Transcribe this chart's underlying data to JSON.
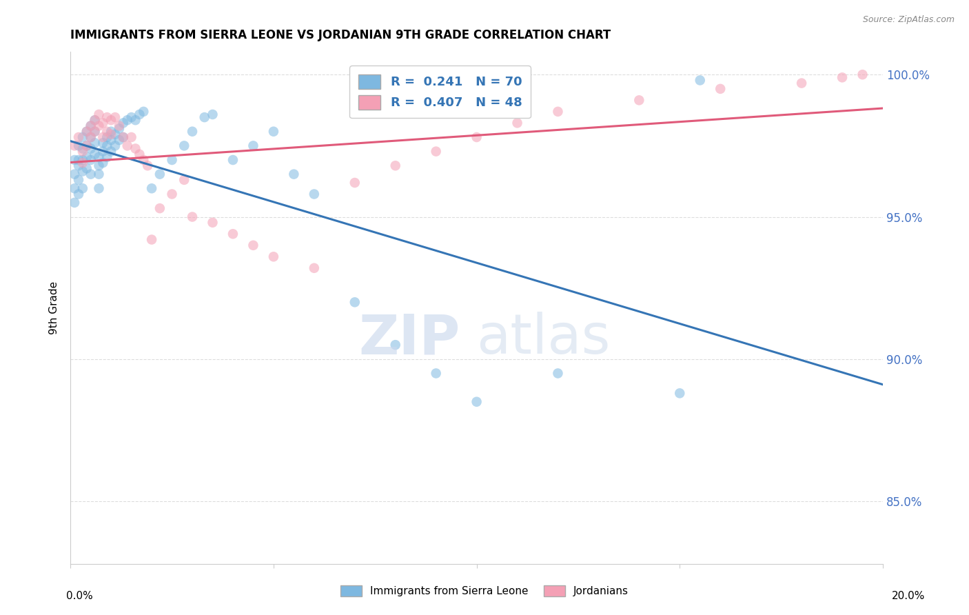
{
  "title": "IMMIGRANTS FROM SIERRA LEONE VS JORDANIAN 9TH GRADE CORRELATION CHART",
  "source": "Source: ZipAtlas.com",
  "ylabel": "9th Grade",
  "xlim": [
    0.0,
    0.2
  ],
  "ylim": [
    0.828,
    1.008
  ],
  "yticks": [
    0.85,
    0.9,
    0.95,
    1.0
  ],
  "ytick_labels": [
    "85.0%",
    "90.0%",
    "95.0%",
    "100.0%"
  ],
  "legend_r1": "R =  0.241   N = 70",
  "legend_r2": "R =  0.407   N = 48",
  "color_blue": "#7eb8e0",
  "color_pink": "#f4a0b5",
  "line_color_blue": "#3575b5",
  "line_color_pink": "#e05a7a",
  "background_color": "#ffffff",
  "grid_color": "#dddddd",
  "blue_x": [
    0.001,
    0.001,
    0.001,
    0.001,
    0.002,
    0.002,
    0.002,
    0.002,
    0.002,
    0.003,
    0.003,
    0.003,
    0.003,
    0.003,
    0.004,
    0.004,
    0.004,
    0.004,
    0.005,
    0.005,
    0.005,
    0.005,
    0.005,
    0.006,
    0.006,
    0.006,
    0.006,
    0.007,
    0.007,
    0.007,
    0.007,
    0.008,
    0.008,
    0.008,
    0.009,
    0.009,
    0.009,
    0.01,
    0.01,
    0.01,
    0.011,
    0.011,
    0.012,
    0.012,
    0.013,
    0.013,
    0.014,
    0.015,
    0.016,
    0.017,
    0.018,
    0.02,
    0.022,
    0.025,
    0.028,
    0.03,
    0.033,
    0.035,
    0.04,
    0.045,
    0.05,
    0.055,
    0.06,
    0.07,
    0.08,
    0.09,
    0.1,
    0.12,
    0.15,
    0.155
  ],
  "blue_y": [
    0.97,
    0.965,
    0.96,
    0.955,
    0.975,
    0.97,
    0.968,
    0.963,
    0.958,
    0.978,
    0.974,
    0.97,
    0.966,
    0.96,
    0.98,
    0.975,
    0.971,
    0.967,
    0.982,
    0.978,
    0.974,
    0.97,
    0.965,
    0.984,
    0.98,
    0.976,
    0.972,
    0.971,
    0.968,
    0.965,
    0.96,
    0.976,
    0.973,
    0.969,
    0.978,
    0.975,
    0.971,
    0.98,
    0.977,
    0.973,
    0.979,
    0.975,
    0.981,
    0.977,
    0.983,
    0.978,
    0.984,
    0.985,
    0.984,
    0.986,
    0.987,
    0.96,
    0.965,
    0.97,
    0.975,
    0.98,
    0.985,
    0.986,
    0.97,
    0.975,
    0.98,
    0.965,
    0.958,
    0.92,
    0.905,
    0.895,
    0.885,
    0.895,
    0.888,
    0.998
  ],
  "pink_x": [
    0.001,
    0.002,
    0.003,
    0.003,
    0.004,
    0.004,
    0.005,
    0.005,
    0.006,
    0.006,
    0.007,
    0.007,
    0.008,
    0.008,
    0.009,
    0.009,
    0.01,
    0.01,
    0.011,
    0.012,
    0.013,
    0.014,
    0.015,
    0.016,
    0.017,
    0.018,
    0.019,
    0.02,
    0.022,
    0.025,
    0.028,
    0.03,
    0.035,
    0.04,
    0.045,
    0.05,
    0.06,
    0.07,
    0.08,
    0.09,
    0.1,
    0.11,
    0.12,
    0.14,
    0.16,
    0.18,
    0.19,
    0.195
  ],
  "pink_y": [
    0.975,
    0.978,
    0.973,
    0.969,
    0.98,
    0.975,
    0.982,
    0.978,
    0.984,
    0.98,
    0.986,
    0.982,
    0.983,
    0.978,
    0.985,
    0.98,
    0.984,
    0.979,
    0.985,
    0.982,
    0.978,
    0.975,
    0.978,
    0.974,
    0.972,
    0.97,
    0.968,
    0.942,
    0.953,
    0.958,
    0.963,
    0.95,
    0.948,
    0.944,
    0.94,
    0.936,
    0.932,
    0.962,
    0.968,
    0.973,
    0.978,
    0.983,
    0.987,
    0.991,
    0.995,
    0.997,
    0.999,
    1.0
  ]
}
